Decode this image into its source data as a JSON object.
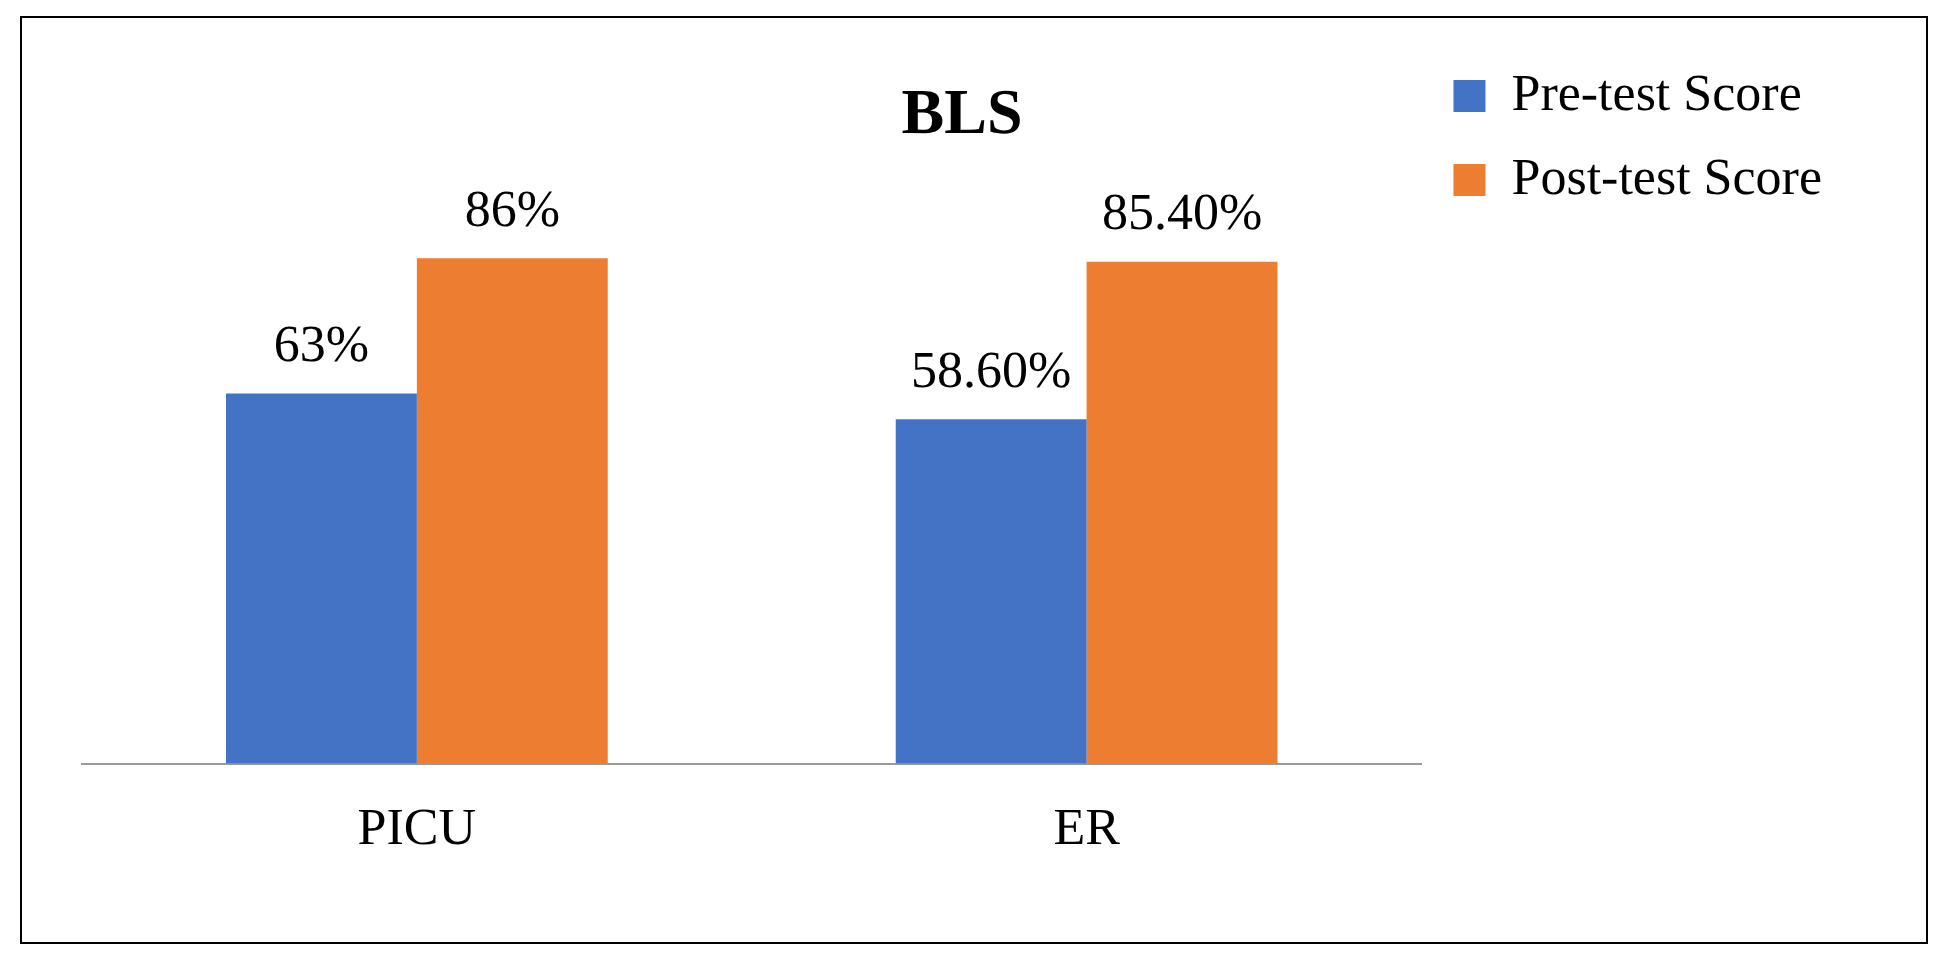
{
  "chart_data": {
    "type": "bar",
    "title": "BLS",
    "categories": [
      "PICU",
      "ER"
    ],
    "series": [
      {
        "name": "Pre-test Score",
        "color": "#4472c4",
        "values": [
          63,
          58.6
        ],
        "value_labels": [
          "63%",
          "58.60%"
        ]
      },
      {
        "name": "Post-test Score",
        "color": "#ed7d31",
        "values": [
          86,
          85.4
        ],
        "value_labels": [
          "86%",
          "85.40%"
        ]
      }
    ],
    "legend": "top right",
    "grid": false
  }
}
